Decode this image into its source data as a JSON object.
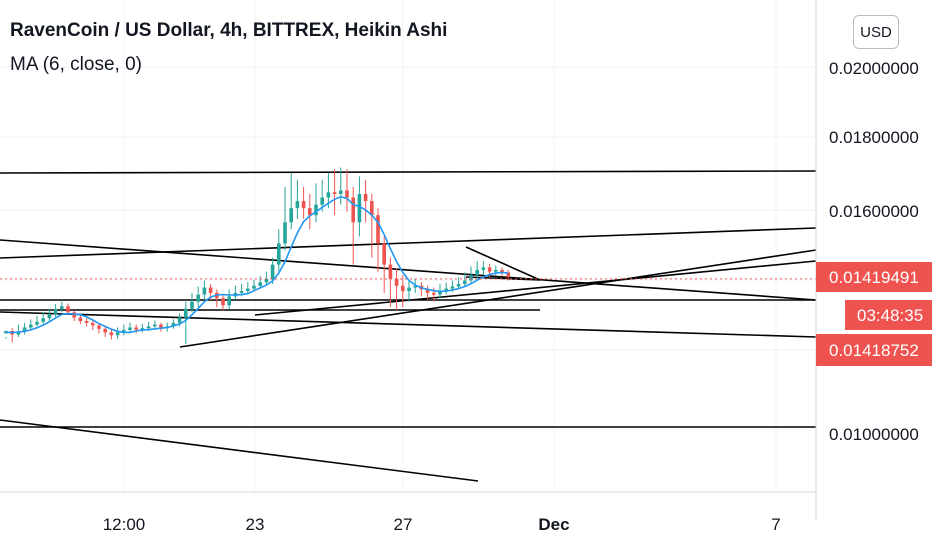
{
  "header": {
    "title": "RavenCoin / US Dollar, 4h, BITTREX, Heikin Ashi",
    "indicator": "MA (6, close, 0)",
    "currency": "USD"
  },
  "colors": {
    "up": "#26a69a",
    "down": "#ef5350",
    "ma": "#2196f3",
    "trendline": "#000000",
    "price_line": "#ef5350",
    "grid": "#f0f3fa"
  },
  "price_axis": {
    "ticks": [
      "0.02000000",
      "0.01800000",
      "0.01600000",
      "0.01000000"
    ],
    "last_price_label": "0.01419491",
    "countdown_label": "03:48:35",
    "second_price_label": "0.01418752"
  },
  "time_axis": {
    "ticks": [
      "12:00",
      "23",
      "27",
      "Dec",
      "7"
    ]
  },
  "chart_data": {
    "type": "candlestick",
    "title": "RavenCoin / US Dollar, 4h, BITTREX, Heikin Ashi",
    "indicator": "MA (6, close, 0)",
    "y_ticks": [
      0.01,
      0.016,
      0.018,
      0.02
    ],
    "last_price": 0.01419491,
    "second_price": 0.01418752,
    "x_ticks": [
      "12:00",
      "23",
      "27",
      "Dec",
      "7"
    ],
    "horizontal_levels": [
      0.017,
      0.0101
    ],
    "candles": [
      [
        0.01265,
        0.01272,
        0.01255,
        0.0125
      ],
      [
        0.01272,
        0.01262,
        0.0128,
        0.0124
      ],
      [
        0.01262,
        0.0127,
        0.0129,
        0.01255
      ],
      [
        0.0127,
        0.01282,
        0.01295,
        0.01262
      ],
      [
        0.01282,
        0.0129,
        0.01305,
        0.01275
      ],
      [
        0.0129,
        0.01298,
        0.01315,
        0.01285
      ],
      [
        0.01298,
        0.01308,
        0.01325,
        0.01292
      ],
      [
        0.01308,
        0.0132,
        0.01335,
        0.013
      ],
      [
        0.0132,
        0.01334,
        0.01348,
        0.01312
      ],
      [
        0.01334,
        0.01342,
        0.01355,
        0.01325
      ],
      [
        0.01342,
        0.01325,
        0.0135,
        0.01318
      ],
      [
        0.01325,
        0.0131,
        0.0133,
        0.013
      ],
      [
        0.0131,
        0.013,
        0.01318,
        0.01292
      ],
      [
        0.013,
        0.01295,
        0.01308,
        0.01285
      ],
      [
        0.01295,
        0.01288,
        0.013,
        0.01275
      ],
      [
        0.01288,
        0.01278,
        0.01295,
        0.01265
      ],
      [
        0.01278,
        0.01268,
        0.01285,
        0.01255
      ],
      [
        0.01268,
        0.0126,
        0.01275,
        0.01248
      ],
      [
        0.0126,
        0.01268,
        0.01282,
        0.0125
      ],
      [
        0.01268,
        0.01275,
        0.0129,
        0.0126
      ],
      [
        0.01275,
        0.01282,
        0.01296,
        0.01268
      ],
      [
        0.01282,
        0.01276,
        0.0129,
        0.01265
      ],
      [
        0.01276,
        0.0128,
        0.01292,
        0.01268
      ],
      [
        0.0128,
        0.01285,
        0.01298,
        0.01272
      ],
      [
        0.01285,
        0.0129,
        0.01302,
        0.01278
      ],
      [
        0.0129,
        0.0128,
        0.01295,
        0.0127
      ],
      [
        0.0128,
        0.01285,
        0.01296,
        0.0127
      ],
      [
        0.01285,
        0.01295,
        0.01305,
        0.01278
      ],
      [
        0.01295,
        0.0131,
        0.01322,
        0.01285
      ],
      [
        0.0131,
        0.01335,
        0.01355,
        0.01235
      ],
      [
        0.01335,
        0.01355,
        0.0138,
        0.01325
      ],
      [
        0.01355,
        0.01375,
        0.01398,
        0.0134
      ],
      [
        0.01375,
        0.01395,
        0.01415,
        0.0136
      ],
      [
        0.01395,
        0.0138,
        0.01405,
        0.0136
      ],
      [
        0.0138,
        0.01365,
        0.0139,
        0.0134
      ],
      [
        0.01365,
        0.01345,
        0.01372,
        0.0133
      ],
      [
        0.01345,
        0.0137,
        0.0139,
        0.01335
      ],
      [
        0.0137,
        0.0138,
        0.014,
        0.0136
      ],
      [
        0.0138,
        0.01385,
        0.01405,
        0.0137
      ],
      [
        0.01385,
        0.01392,
        0.0141,
        0.01378
      ],
      [
        0.01392,
        0.014,
        0.01418,
        0.01385
      ],
      [
        0.014,
        0.0141,
        0.01428,
        0.01392
      ],
      [
        0.0141,
        0.0142,
        0.0144,
        0.01402
      ],
      [
        0.0142,
        0.0146,
        0.0148,
        0.01405
      ],
      [
        0.0146,
        0.0152,
        0.0156,
        0.0144
      ],
      [
        0.0152,
        0.0158,
        0.0168,
        0.015
      ],
      [
        0.0158,
        0.0162,
        0.0172,
        0.0156
      ],
      [
        0.0162,
        0.0164,
        0.017,
        0.0159
      ],
      [
        0.0164,
        0.0162,
        0.0168,
        0.0159
      ],
      [
        0.0162,
        0.016,
        0.0166,
        0.0156
      ],
      [
        0.016,
        0.0163,
        0.0169,
        0.0158
      ],
      [
        0.0163,
        0.0165,
        0.017,
        0.0161
      ],
      [
        0.0165,
        0.01665,
        0.0172,
        0.0162
      ],
      [
        0.01665,
        0.0166,
        0.0173,
        0.016
      ],
      [
        0.0166,
        0.0167,
        0.01735,
        0.0163
      ],
      [
        0.0167,
        0.0165,
        0.0173,
        0.0161
      ],
      [
        0.0165,
        0.0158,
        0.0168,
        0.0146
      ],
      [
        0.0158,
        0.0166,
        0.0171,
        0.0154
      ],
      [
        0.0166,
        0.0164,
        0.017,
        0.0158
      ],
      [
        0.0164,
        0.016,
        0.0166,
        0.0148
      ],
      [
        0.016,
        0.0152,
        0.0162,
        0.0144
      ],
      [
        0.0152,
        0.0146,
        0.0154,
        0.0138
      ],
      [
        0.0146,
        0.0142,
        0.0148,
        0.0134
      ],
      [
        0.0142,
        0.014,
        0.0145,
        0.0133
      ],
      [
        0.014,
        0.01385,
        0.0143,
        0.0134
      ],
      [
        0.01385,
        0.01395,
        0.01415,
        0.01355
      ],
      [
        0.01395,
        0.014,
        0.0142,
        0.0138
      ],
      [
        0.014,
        0.0139,
        0.0141,
        0.0137
      ],
      [
        0.0139,
        0.0138,
        0.014,
        0.0136
      ],
      [
        0.0138,
        0.01375,
        0.01395,
        0.01355
      ],
      [
        0.01375,
        0.01385,
        0.01405,
        0.01365
      ],
      [
        0.01385,
        0.01392,
        0.0141,
        0.01375
      ],
      [
        0.01392,
        0.01398,
        0.01415,
        0.01382
      ],
      [
        0.01398,
        0.01405,
        0.01425,
        0.0139
      ],
      [
        0.01405,
        0.01415,
        0.01438,
        0.01398
      ],
      [
        0.01415,
        0.0143,
        0.01455,
        0.01405
      ],
      [
        0.0143,
        0.01445,
        0.0147,
        0.0142
      ],
      [
        0.01445,
        0.01452,
        0.0147,
        0.0143
      ],
      [
        0.01452,
        0.0144,
        0.01462,
        0.01425
      ],
      [
        0.0144,
        0.01445,
        0.01458,
        0.0143
      ],
      [
        0.01445,
        0.01438,
        0.01452,
        0.01428
      ],
      [
        0.01438,
        0.01425,
        0.01445,
        0.01415
      ]
    ],
    "ma": [
      0.01268,
      0.01268,
      0.01269,
      0.01271,
      0.01275,
      0.01281,
      0.01289,
      0.01298,
      0.01309,
      0.01319,
      0.01321,
      0.0132,
      0.01318,
      0.01312,
      0.01303,
      0.01293,
      0.01285,
      0.01277,
      0.01271,
      0.01268,
      0.01268,
      0.01272,
      0.01275,
      0.01276,
      0.01278,
      0.0128,
      0.01282,
      0.01286,
      0.01292,
      0.01302,
      0.01318,
      0.01336,
      0.01355,
      0.01368,
      0.01374,
      0.01375,
      0.01374,
      0.01374,
      0.01375,
      0.01378,
      0.01386,
      0.01394,
      0.01402,
      0.01414,
      0.01436,
      0.01468,
      0.0151,
      0.0155,
      0.01582,
      0.01598,
      0.0161,
      0.01622,
      0.01634,
      0.01645,
      0.01652,
      0.01648,
      0.0163,
      0.01625,
      0.01615,
      0.016,
      0.0158,
      0.01545,
      0.01505,
      0.01468,
      0.01438,
      0.01415,
      0.01402,
      0.01394,
      0.0139,
      0.01386,
      0.01384,
      0.01385,
      0.01388,
      0.01392,
      0.01398,
      0.01406,
      0.01416,
      0.01425,
      0.01432,
      0.01436,
      0.01438,
      0.01436
    ]
  }
}
